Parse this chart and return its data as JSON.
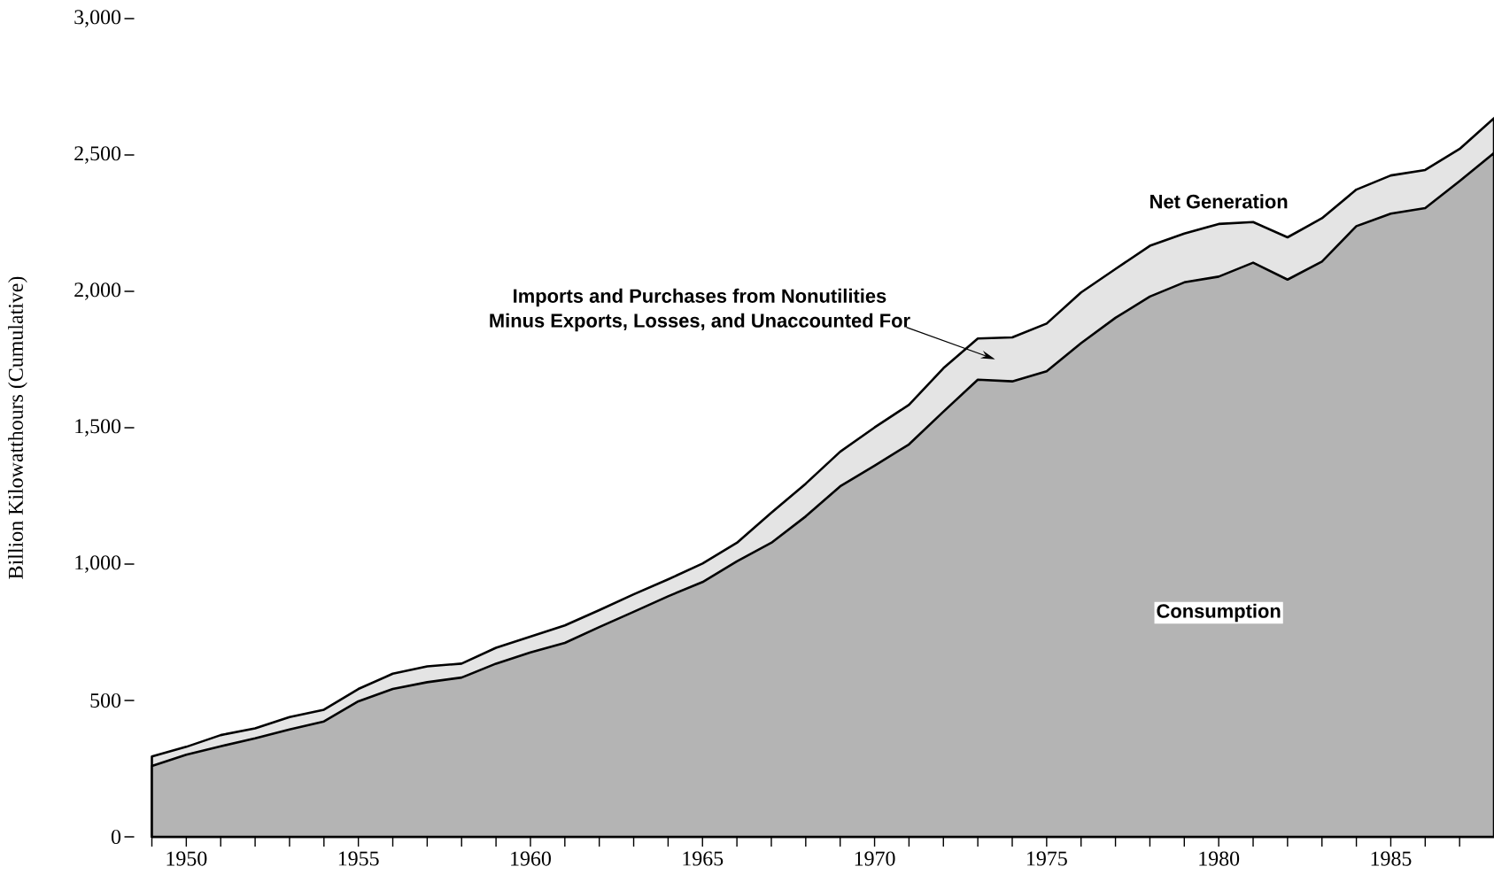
{
  "chart_data": {
    "type": "area",
    "ylabel": "Billion Kilowatthours (Cumulative)",
    "x": [
      1949,
      1950,
      1951,
      1952,
      1953,
      1954,
      1955,
      1956,
      1957,
      1958,
      1959,
      1960,
      1961,
      1962,
      1963,
      1964,
      1965,
      1966,
      1967,
      1968,
      1969,
      1970,
      1971,
      1972,
      1973,
      1974,
      1975,
      1976,
      1977,
      1978,
      1979,
      1980,
      1981,
      1982,
      1983,
      1984,
      1985,
      1986,
      1987,
      1988
    ],
    "series": [
      {
        "name": "Net Generation",
        "color": "#e4e4e4",
        "values": [
          295,
          330,
          373,
          398,
          439,
          466,
          542,
          598,
          625,
          635,
          693,
          734,
          775,
          831,
          889,
          944,
          1002,
          1078,
          1188,
          1295,
          1412,
          1501,
          1584,
          1718,
          1827,
          1831,
          1882,
          1996,
          2082,
          2167,
          2212,
          2247,
          2254,
          2198,
          2268,
          2373,
          2425,
          2445,
          2522,
          2635
        ]
      },
      {
        "name": "Consumption",
        "color": "#b4b4b4",
        "values": [
          260,
          301,
          332,
          361,
          394,
          423,
          497,
          542,
          567,
          584,
          635,
          676,
          711,
          769,
          825,
          882,
          934,
          1010,
          1078,
          1175,
          1285,
          1361,
          1439,
          1559,
          1676,
          1670,
          1707,
          1810,
          1903,
          1981,
          2033,
          2054,
          2105,
          2043,
          2109,
          2239,
          2285,
          2305,
          2404,
          2507
        ]
      }
    ],
    "annotations": [
      "Imports and Purchases from Nonutilities",
      "Minus Exports, Losses, and Unaccounted For"
    ],
    "xlim": [
      1949,
      1988
    ],
    "ylim": [
      0,
      3000
    ],
    "xticks": [
      {
        "value": 1949,
        "label": null
      },
      1950,
      {
        "value": 1951,
        "label": null
      },
      {
        "value": 1952,
        "label": null
      },
      {
        "value": 1953,
        "label": null
      },
      {
        "value": 1954,
        "label": null
      },
      1955,
      {
        "value": 1956,
        "label": null
      },
      {
        "value": 1957,
        "label": null
      },
      {
        "value": 1958,
        "label": null
      },
      {
        "value": 1959,
        "label": null
      },
      1960,
      {
        "value": 1961,
        "label": null
      },
      {
        "value": 1962,
        "label": null
      },
      {
        "value": 1963,
        "label": null
      },
      {
        "value": 1964,
        "label": null
      },
      1965,
      {
        "value": 1966,
        "label": null
      },
      {
        "value": 1967,
        "label": null
      },
      {
        "value": 1968,
        "label": null
      },
      {
        "value": 1969,
        "label": null
      },
      1970,
      {
        "value": 1971,
        "label": null
      },
      {
        "value": 1972,
        "label": null
      },
      {
        "value": 1973,
        "label": null
      },
      {
        "value": 1974,
        "label": null
      },
      1975,
      {
        "value": 1976,
        "label": null
      },
      {
        "value": 1977,
        "label": null
      },
      {
        "value": 1978,
        "label": null
      },
      {
        "value": 1979,
        "label": null
      },
      1980,
      {
        "value": 1981,
        "label": null
      },
      {
        "value": 1982,
        "label": null
      },
      {
        "value": 1983,
        "label": null
      },
      {
        "value": 1984,
        "label": null
      },
      1985,
      {
        "value": 1986,
        "label": null
      },
      {
        "value": 1987,
        "label": null
      }
    ],
    "yticks": [
      0,
      500,
      {
        "value": 1000,
        "label": "1,000"
      },
      {
        "value": 1500,
        "label": "1,500"
      },
      {
        "value": 2000,
        "label": "2,000"
      },
      {
        "value": 2500,
        "label": "2,500"
      },
      {
        "value": 3000,
        "label": "3,000"
      }
    ],
    "grid": false
  }
}
